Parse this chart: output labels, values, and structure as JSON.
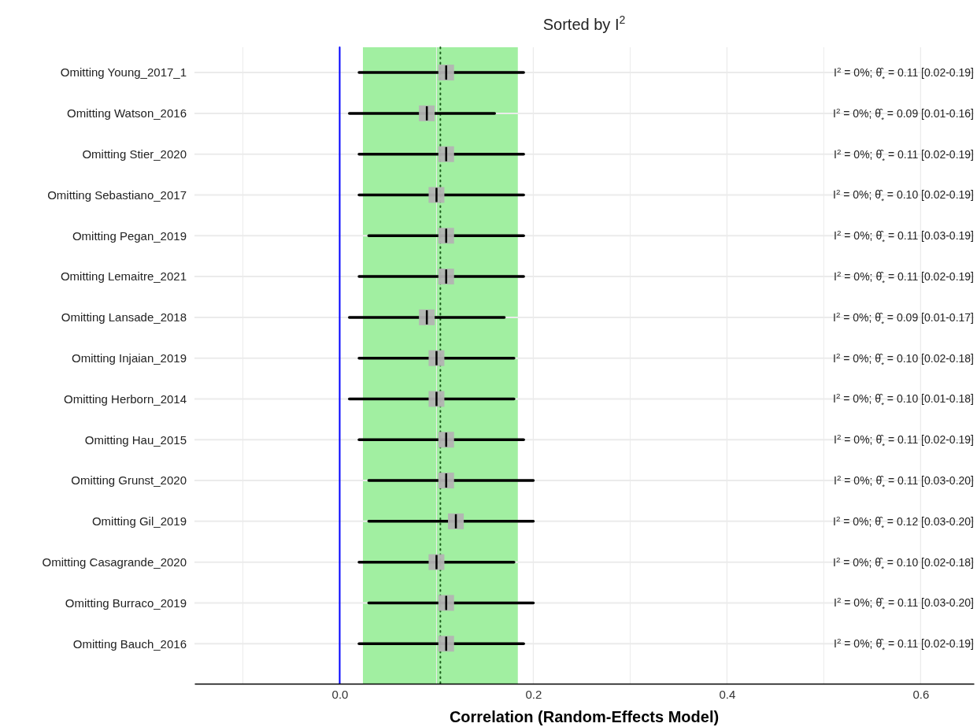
{
  "chart_data": {
    "type": "scatter",
    "orientation": "horizontal",
    "title": "Sorted by I$^{2}$",
    "xlabel": "Correlation (Random-Effects Model)",
    "categories": [
      "Omitting Young_2017_1",
      "Omitting Watson_2016",
      "Omitting Stier_2020",
      "Omitting Sebastiano_2017",
      "Omitting Pegan_2019",
      "Omitting Lemaitre_2021",
      "Omitting Lansade_2018",
      "Omitting Injaian_2019",
      "Omitting Herborn_2014",
      "Omitting Hau_2015",
      "Omitting Grunst_2020",
      "Omitting Gil_2019",
      "Omitting Casagrande_2020",
      "Omitting Burraco_2019",
      "Omitting Bauch_2016"
    ],
    "values": [
      0.11,
      0.09,
      0.11,
      0.1,
      0.11,
      0.11,
      0.09,
      0.1,
      0.1,
      0.11,
      0.11,
      0.12,
      0.1,
      0.11,
      0.11
    ],
    "errors": [
      [
        0.02,
        0.19
      ],
      [
        0.01,
        0.16
      ],
      [
        0.02,
        0.19
      ],
      [
        0.02,
        0.19
      ],
      [
        0.03,
        0.19
      ],
      [
        0.02,
        0.19
      ],
      [
        0.01,
        0.17
      ],
      [
        0.02,
        0.18
      ],
      [
        0.01,
        0.18
      ],
      [
        0.02,
        0.19
      ],
      [
        0.03,
        0.2
      ],
      [
        0.03,
        0.2
      ],
      [
        0.02,
        0.18
      ],
      [
        0.03,
        0.2
      ],
      [
        0.02,
        0.19
      ]
    ],
    "annotations": [
      "I$^{2}$ = 0%; θ̂$_{*}$ = 0.11 [0.02-0.19]",
      "I$^{2}$ = 0%; θ̂$_{*}$ = 0.09 [0.01-0.16]",
      "I$^{2}$ = 0%; θ̂$_{*}$ = 0.11 [0.02-0.19]",
      "I$^{2}$ = 0%; θ̂$_{*}$ = 0.10 [0.02-0.19]",
      "I$^{2}$ = 0%; θ̂$_{*}$ = 0.11 [0.03-0.19]",
      "I$^{2}$ = 0%; θ̂$_{*}$ = 0.11 [0.02-0.19]",
      "I$^{2}$ = 0%; θ̂$_{*}$ = 0.09 [0.01-0.17]",
      "I$^{2}$ = 0%; θ̂$_{*}$ = 0.10 [0.02-0.18]",
      "I$^{2}$ = 0%; θ̂$_{*}$ = 0.10 [0.01-0.18]",
      "I$^{2}$ = 0%; θ̂$_{*}$ = 0.11 [0.02-0.19]",
      "I$^{2}$ = 0%; θ̂$_{*}$ = 0.11 [0.03-0.20]",
      "I$^{2}$ = 0%; θ̂$_{*}$ = 0.12 [0.03-0.20]",
      "I$^{2}$ = 0%; θ̂$_{*}$ = 0.10 [0.02-0.18]",
      "I$^{2}$ = 0%; θ̂$_{*}$ = 0.11 [0.03-0.20]",
      "I$^{2}$ = 0%; θ̂$_{*}$ = 0.11 [0.02-0.19]"
    ],
    "color": "#b3b3b3",
    "marker": "square",
    "xlim": [
      -0.15,
      0.655
    ],
    "xticks": [
      {
        "value": -0.1,
        "label": null
      },
      {
        "value": 0,
        "label": "0.0"
      },
      {
        "value": 0.1,
        "label": null
      },
      {
        "value": 0.2,
        "label": "0.2"
      },
      {
        "value": 0.3,
        "label": null
      },
      {
        "value": 0.4,
        "label": "0.4"
      },
      {
        "value": 0.5,
        "label": null
      },
      {
        "value": 0.6,
        "label": "0.6"
      }
    ],
    "bands": [
      {
        "axis": "x",
        "from": 0.024,
        "to": 0.184,
        "color": "#a1efa1"
      }
    ],
    "ref_lines": [
      {
        "axis": "x",
        "value": 0,
        "color": "#0000ff",
        "line_style": "solid"
      },
      {
        "axis": "x",
        "value": 0.104,
        "color": "#1a5c1a",
        "line_style": "dotted"
      }
    ],
    "grid": true
  }
}
